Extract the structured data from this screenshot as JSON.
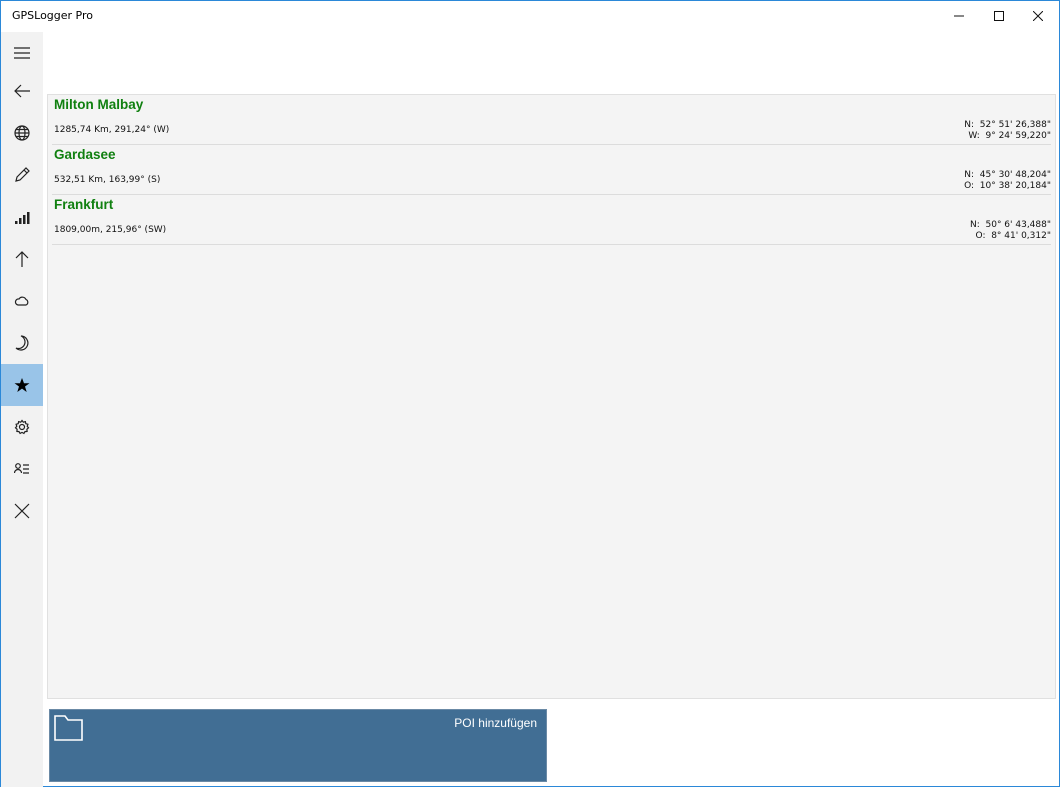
{
  "window": {
    "title": "GPSLogger Pro",
    "controls": [
      "minimize",
      "maximize",
      "close"
    ]
  },
  "sidebar": {
    "items": [
      {
        "icon": "hamburger-menu-icon"
      },
      {
        "icon": "back-arrow-icon"
      },
      {
        "icon": "globe-icon"
      },
      {
        "icon": "pencil-icon"
      },
      {
        "icon": "signal-bars-icon"
      },
      {
        "icon": "up-arrow-icon"
      },
      {
        "icon": "cloud-icon"
      },
      {
        "icon": "moon-icon"
      },
      {
        "icon": "star-icon",
        "active": true
      },
      {
        "icon": "gear-icon"
      },
      {
        "icon": "contact-list-icon"
      },
      {
        "icon": "close-x-icon"
      }
    ],
    "active_color": "#99c4e8"
  },
  "poi_list": [
    {
      "name": "Milton Malbay",
      "info": "1285,74 Km, 291,24° (W)",
      "lat": "N:  52° 51' 26,388\"",
      "lon": "W:  9° 24' 59,220\""
    },
    {
      "name": "Gardasee",
      "info": "532,51 Km, 163,99° (S)",
      "lat": "N:  45° 30' 48,204\"",
      "lon": "O:  10° 38' 20,184\""
    },
    {
      "name": "Frankfurt",
      "info": "1809,00m, 215,96° (SW)",
      "lat": "N:  50° 6' 43,488\"",
      "lon": "O:  8° 41' 0,312\""
    }
  ],
  "add_tile": {
    "label": "POI hinzufügen",
    "icon": "folder-icon",
    "color": "#416e94"
  },
  "name_color": "#108010"
}
